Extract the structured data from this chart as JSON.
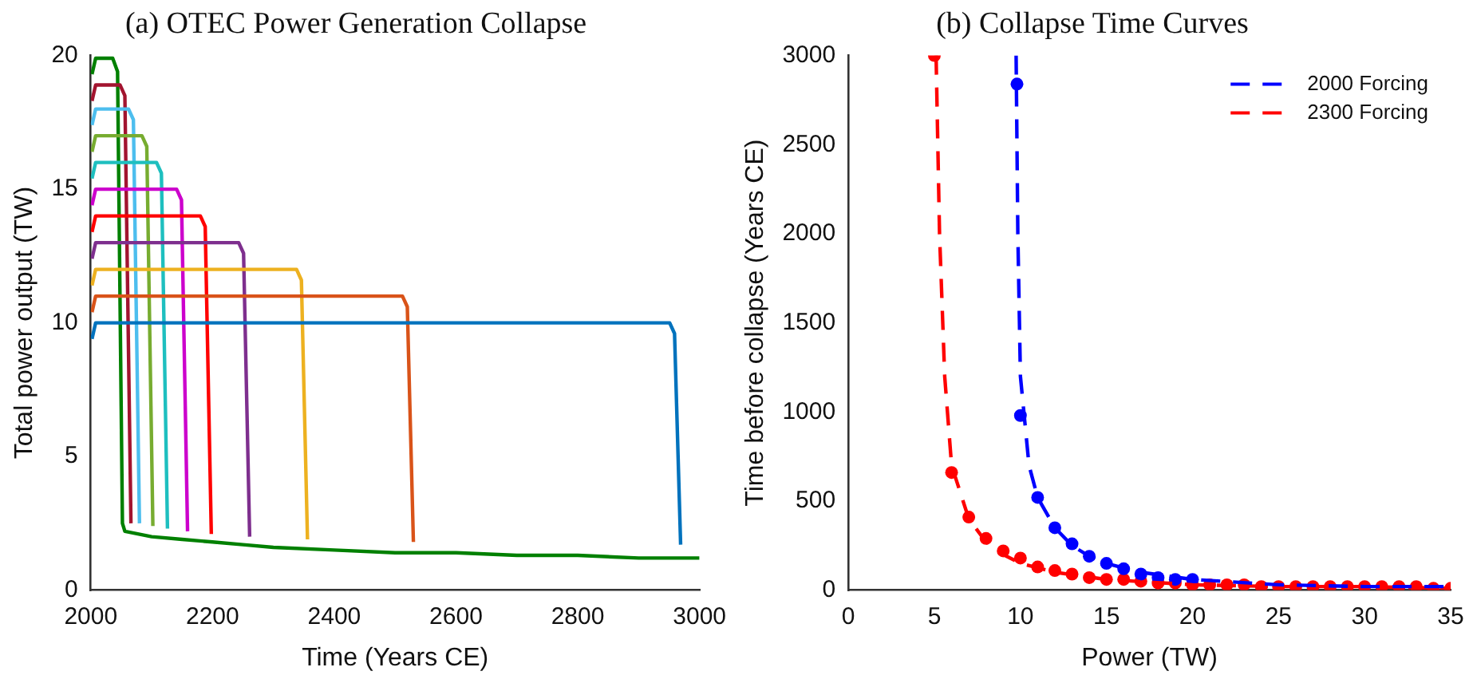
{
  "chart_data": [
    {
      "type": "line",
      "title": "(a) OTEC Power Generation Collapse",
      "xlabel": "Time (Years CE)",
      "ylabel": "Total power output (TW)",
      "xlim": [
        2000,
        3000
      ],
      "xticks": [
        2000,
        2200,
        2400,
        2600,
        2800,
        3000
      ],
      "ylim": [
        0,
        20
      ],
      "yticks": [
        0,
        5,
        10,
        15,
        20
      ],
      "grid": false,
      "legend": false,
      "series": [
        {
          "color": "#0072bd",
          "x": [
            2002,
            2008,
            2951,
            2959,
            2969
          ],
          "values": [
            9.4,
            10,
            10,
            9.6,
            1.7
          ]
        },
        {
          "color": "#d95319",
          "x": [
            2002,
            2008,
            2512,
            2520,
            2530
          ],
          "values": [
            10.4,
            11,
            11,
            10.6,
            1.8
          ]
        },
        {
          "color": "#edb120",
          "x": [
            2002,
            2008,
            2338,
            2346,
            2356
          ],
          "values": [
            11.4,
            12,
            12,
            11.6,
            1.9
          ]
        },
        {
          "color": "#7e2f8e",
          "x": [
            2002,
            2008,
            2243,
            2251,
            2261
          ],
          "values": [
            12.4,
            13,
            13,
            12.6,
            2
          ]
        },
        {
          "color": "#ff0000",
          "x": [
            2002,
            2008,
            2180,
            2188,
            2198
          ],
          "values": [
            13.4,
            14,
            14,
            13.6,
            2.1
          ]
        },
        {
          "color": "#cc00cc",
          "x": [
            2002,
            2008,
            2141,
            2149,
            2159
          ],
          "values": [
            14.4,
            15,
            15,
            14.6,
            2.2
          ]
        },
        {
          "color": "#1ebfbf",
          "x": [
            2002,
            2008,
            2108,
            2116,
            2126
          ],
          "values": [
            15.4,
            16,
            16,
            15.6,
            2.3
          ]
        },
        {
          "color": "#77ac30",
          "x": [
            2002,
            2008,
            2084,
            2092,
            2102
          ],
          "values": [
            16.4,
            17,
            17,
            16.6,
            2.4
          ]
        },
        {
          "color": "#4dbeee",
          "x": [
            2002,
            2008,
            2062,
            2070,
            2080
          ],
          "values": [
            17.4,
            18,
            18,
            17.6,
            2.5
          ]
        },
        {
          "color": "#a2142f",
          "x": [
            2002,
            2008,
            2048,
            2056,
            2066
          ],
          "values": [
            18.3,
            18.9,
            18.9,
            18.5,
            2.5
          ]
        },
        {
          "color": "#008000",
          "x": [
            2002,
            2008,
            2036,
            2044,
            2052,
            2056,
            2100,
            2150,
            2200,
            2250,
            2300,
            2400,
            2500,
            2600,
            2700,
            2800,
            2900,
            3000
          ],
          "values": [
            19.3,
            19.9,
            19.9,
            19.4,
            2.5,
            2.2,
            2,
            1.9,
            1.8,
            1.7,
            1.6,
            1.5,
            1.4,
            1.4,
            1.3,
            1.3,
            1.2,
            1.2
          ]
        }
      ]
    },
    {
      "type": "line",
      "title": "(b) Collapse Time Curves",
      "xlabel": "Power (TW)",
      "ylabel": "Time before collapse (Years CE)",
      "xlim": [
        0,
        35
      ],
      "xticks": [
        0,
        5,
        10,
        15,
        20,
        25,
        30,
        35
      ],
      "ylim": [
        0,
        3000
      ],
      "yticks": [
        0,
        500,
        1000,
        1500,
        2000,
        2500,
        3000
      ],
      "grid": false,
      "legend": "top right",
      "series": [
        {
          "name": "2000 Forcing",
          "color": "#0000ff",
          "line_style": "dashed",
          "x": [
            9.75,
            9.85,
            10,
            10.5,
            11,
            12,
            13,
            14,
            15,
            17,
            20,
            25,
            30,
            35
          ],
          "values": [
            3000,
            2000,
            1200,
            700,
            520,
            350,
            250,
            190,
            150,
            100,
            60,
            30,
            20,
            20
          ]
        },
        {
          "name": "2300 Forcing",
          "color": "#ff0000",
          "line_style": "dashed",
          "x": [
            5.1,
            5.3,
            5.6,
            6,
            7,
            8,
            9,
            10,
            12,
            15,
            20,
            25,
            30,
            35
          ],
          "values": [
            3000,
            2000,
            1200,
            700,
            400,
            270,
            200,
            150,
            100,
            60,
            30,
            20,
            20,
            10
          ]
        },
        {
          "type": "scatter",
          "marker": "circle",
          "color": "#0000ff",
          "x": [
            9.8,
            10,
            11,
            12,
            13,
            14,
            15,
            16,
            17,
            18,
            19,
            20
          ],
          "values": [
            2840,
            980,
            520,
            350,
            260,
            190,
            150,
            120,
            90,
            70,
            60,
            60
          ]
        },
        {
          "type": "scatter",
          "marker": "circle",
          "color": "#ff0000",
          "x": [
            5,
            6,
            7,
            8,
            9,
            10,
            11,
            12,
            13,
            14,
            15,
            16,
            17,
            18,
            19,
            20,
            21,
            22,
            23,
            24,
            25,
            26,
            27,
            28,
            29,
            30,
            31,
            32,
            33,
            34,
            35
          ],
          "values": [
            3000,
            660,
            410,
            290,
            220,
            180,
            130,
            110,
            90,
            70,
            60,
            60,
            50,
            40,
            40,
            30,
            30,
            30,
            30,
            20,
            20,
            20,
            20,
            20,
            20,
            20,
            20,
            20,
            20,
            10,
            10
          ]
        }
      ]
    }
  ]
}
